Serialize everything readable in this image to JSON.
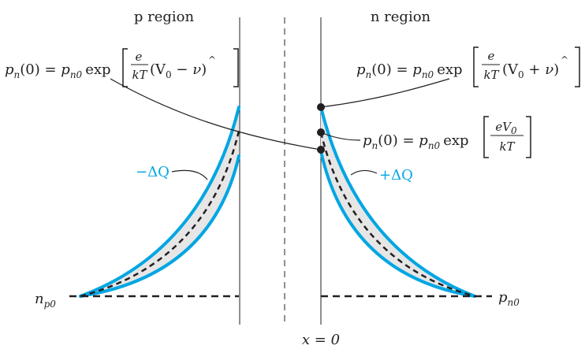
{
  "regions": {
    "p": "p region",
    "n": "n region"
  },
  "axis_origin": "x = 0",
  "equations": {
    "left": {
      "lhs": "p",
      "lhs_sub": "n",
      "lhs_arg": "(0) = ",
      "rhs": "p",
      "rhs_sub": "n0",
      "exp": "exp",
      "frac_num": "e",
      "frac_den": "kT",
      "paren": "(V",
      "paren_sub": "0",
      "op": " − ",
      "v": "ν",
      "hat": "^",
      "close": ")"
    },
    "right_top": {
      "lhs": "p",
      "lhs_sub": "n",
      "lhs_arg": "(0) = ",
      "rhs": "p",
      "rhs_sub": "n0",
      "exp": "exp",
      "frac_num": "e",
      "frac_den": "kT",
      "paren": "(V",
      "paren_sub": "0",
      "op": " + ",
      "v": "ν",
      "hat": "^",
      "close": ")"
    },
    "right_mid": {
      "lhs": "p",
      "lhs_sub": "n",
      "lhs_arg": "(0) = ",
      "rhs": "p",
      "rhs_sub": "n0",
      "exp": "exp",
      "frac_num": "eV",
      "frac_num_sub": "0",
      "frac_den": "kT"
    }
  },
  "charges": {
    "left": "−ΔQ",
    "right": "+ΔQ"
  },
  "equilibrium": {
    "left": "n",
    "left_sub": "p0",
    "right": "p",
    "right_sub": "n0"
  },
  "colors": {
    "curve": "#00a6e2",
    "fill": "#e6e6e6",
    "ink": "#231f20"
  }
}
